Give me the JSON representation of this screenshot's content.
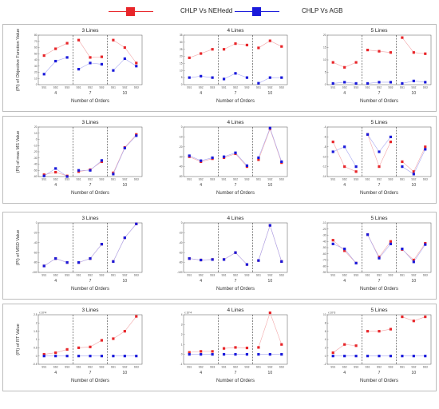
{
  "legend": [
    {
      "name": "CHLP Vs NEHedd",
      "color": "#e8262a"
    },
    {
      "name": "CHLP Vs AGB",
      "color": "#1a1adb"
    }
  ],
  "chart_data": [
    {
      "type": "line",
      "title": "3 Lines",
      "ylabel": "(PI) of Objective Function Value",
      "xlabel": "Number of Orders",
      "groups": [
        "4",
        "7",
        "10"
      ],
      "subcategories": [
        "SS1",
        "SS2",
        "SS3"
      ],
      "ylim": [
        0,
        80
      ],
      "yticks": [
        0,
        10,
        20,
        30,
        40,
        50,
        60,
        70,
        80
      ],
      "series": [
        {
          "name": "CHLP Vs NEHedd",
          "values": [
            47,
            58,
            67,
            72,
            44,
            45,
            72,
            60,
            35
          ]
        },
        {
          "name": "CHLP Vs AGB",
          "values": [
            17,
            38,
            44,
            25,
            35,
            33,
            23,
            42,
            30
          ]
        }
      ]
    },
    {
      "type": "line",
      "title": "4 Lines",
      "ylabel": "",
      "xlabel": "Number of Orders",
      "groups": [
        "4",
        "7",
        "10"
      ],
      "subcategories": [
        "SS1",
        "SS2",
        "SS3"
      ],
      "ylim": [
        0,
        35
      ],
      "yticks": [
        0,
        5,
        10,
        15,
        20,
        25,
        30,
        35
      ],
      "series": [
        {
          "name": "CHLP Vs NEHedd",
          "values": [
            19,
            22,
            25,
            25,
            29,
            28,
            26,
            31,
            27
          ]
        },
        {
          "name": "CHLP Vs AGB",
          "values": [
            5,
            6,
            5,
            4,
            8,
            5,
            1,
            5,
            5
          ]
        }
      ]
    },
    {
      "type": "line",
      "title": "5 Lines",
      "ylabel": "",
      "xlabel": "Number of Orders",
      "groups": [
        "4",
        "7",
        "10"
      ],
      "subcategories": [
        "SS1",
        "SS2",
        "SS3"
      ],
      "ylim": [
        0,
        20
      ],
      "yticks": [
        0,
        5,
        10,
        15,
        20
      ],
      "series": [
        {
          "name": "CHLP Vs NEHedd",
          "values": [
            9,
            7,
            9,
            14,
            13.5,
            13,
            19,
            13,
            12.5
          ]
        },
        {
          "name": "CHLP Vs AGB",
          "values": [
            0.5,
            1,
            0.5,
            0.5,
            1,
            1,
            0.5,
            1.5,
            1
          ]
        }
      ]
    },
    {
      "type": "line",
      "title": "3 Lines",
      "ylabel": "(PI) of max MS Value",
      "xlabel": "Number of Orders",
      "groups": [
        "4",
        "7",
        "10"
      ],
      "subcategories": [
        "SS1",
        "SS2",
        "SS3"
      ],
      "ylim": [
        -60,
        20
      ],
      "yticks": [
        -60,
        -50,
        -40,
        -30,
        -20,
        -10,
        0,
        10,
        20
      ],
      "series": [
        {
          "name": "CHLP Vs NEHedd",
          "values": [
            -57,
            -53,
            -59,
            -52,
            -49,
            -36,
            -54,
            -13,
            8
          ]
        },
        {
          "name": "CHLP Vs AGB",
          "values": [
            -59,
            -47,
            -60,
            -50,
            -50,
            -34,
            -56,
            -14,
            6
          ]
        }
      ]
    },
    {
      "type": "line",
      "title": "4 Lines",
      "ylabel": "",
      "xlabel": "Number of Orders",
      "groups": [
        "4",
        "7",
        "10"
      ],
      "subcategories": [
        "SS1",
        "SS2",
        "SS3"
      ],
      "ylim": [
        -50,
        0
      ],
      "yticks": [
        -50,
        -40,
        -30,
        -20,
        -10,
        0
      ],
      "series": [
        {
          "name": "CHLP Vs NEHedd",
          "values": [
            -30,
            -35,
            -32,
            -31,
            -27,
            -40,
            -33,
            -2,
            -36
          ]
        },
        {
          "name": "CHLP Vs AGB",
          "values": [
            -29,
            -34,
            -31,
            -30,
            -26,
            -39,
            -31,
            -1,
            -35
          ]
        }
      ]
    },
    {
      "type": "line",
      "title": "5 Lines",
      "ylabel": "",
      "xlabel": "Number of Orders",
      "groups": [
        "4",
        "7",
        "10"
      ],
      "subcategories": [
        "SS1",
        "SS2",
        "SS3"
      ],
      "ylim": [
        -14,
        -4
      ],
      "yticks": [
        -14,
        -12,
        -10,
        -8,
        -6,
        -4
      ],
      "series": [
        {
          "name": "CHLP Vs NEHedd",
          "values": [
            -7,
            -12,
            -13,
            -5.5,
            -12,
            -7,
            -11,
            -13,
            -8
          ]
        },
        {
          "name": "CHLP Vs AGB",
          "values": [
            -9,
            -8,
            -12,
            -5.5,
            -9,
            -6,
            -12,
            -13.5,
            -8.5
          ]
        }
      ]
    },
    {
      "type": "line",
      "title": "3 Lines",
      "ylabel": "(PI) of MSD Value",
      "xlabel": "Number of Orders",
      "groups": [
        "4",
        "7",
        "10"
      ],
      "subcategories": [
        "SS1",
        "SS2",
        "SS3"
      ],
      "ylim": [
        -100,
        0
      ],
      "yticks": [
        -100,
        -80,
        -60,
        -40,
        -20,
        0
      ],
      "series": [
        {
          "name": "CHLP Vs NEHedd",
          "values": [
            -87,
            -72,
            -80,
            -80,
            -72,
            -43,
            -78,
            -30,
            -2
          ]
        },
        {
          "name": "CHLP Vs AGB",
          "values": [
            -87,
            -72,
            -80,
            -80,
            -72,
            -43,
            -78,
            -30,
            -2
          ]
        }
      ]
    },
    {
      "type": "line",
      "title": "4 Lines",
      "ylabel": "",
      "xlabel": "Number of Orders",
      "groups": [
        "4",
        "7",
        "10"
      ],
      "subcategories": [
        "SS1",
        "SS2",
        "SS3"
      ],
      "ylim": [
        -100,
        0
      ],
      "yticks": [
        -100,
        -80,
        -60,
        -40,
        -20,
        0
      ],
      "series": [
        {
          "name": "CHLP Vs NEHedd",
          "values": [
            -72,
            -75,
            -74,
            -74,
            -60,
            -84,
            -76,
            -5,
            -78
          ]
        },
        {
          "name": "CHLP Vs AGB",
          "values": [
            -72,
            -75,
            -74,
            -74,
            -60,
            -84,
            -76,
            -5,
            -78
          ]
        }
      ]
    },
    {
      "type": "line",
      "title": "5 Lines",
      "ylabel": "",
      "xlabel": "Number of Orders",
      "groups": [
        "4",
        "7",
        "10"
      ],
      "subcategories": [
        "SS1",
        "SS2",
        "SS3"
      ],
      "ylim": [
        -90,
        -10
      ],
      "yticks": [
        -90,
        -80,
        -70,
        -60,
        -50,
        -40,
        -30,
        -20,
        -10
      ],
      "series": [
        {
          "name": "CHLP Vs NEHedd",
          "values": [
            -38,
            -55,
            -75,
            -29,
            -65,
            -40,
            -53,
            -70,
            -43
          ]
        },
        {
          "name": "CHLP Vs AGB",
          "values": [
            -44,
            -52,
            -75,
            -29,
            -67,
            -44,
            -52,
            -73,
            -45
          ]
        }
      ]
    },
    {
      "type": "line",
      "title": "3 Lines",
      "ylabel": "(PI) of RT Value",
      "xlabel": "Number of Orders",
      "groups": [
        "4",
        "7",
        "10"
      ],
      "subcategories": [
        "SS1",
        "SS2",
        "SS3"
      ],
      "ylim": [
        -0.5,
        2.5
      ],
      "yticks": [
        -0.5,
        0,
        0.5,
        1,
        1.5,
        2,
        2.5
      ],
      "ytick_labels": [
        "-0.5",
        "0",
        "0.5",
        "1",
        "1.5",
        "2",
        "2.5"
      ],
      "yexponent": "x 10^4",
      "series": [
        {
          "name": "CHLP Vs NEHedd",
          "values": [
            0.1,
            0.2,
            0.4,
            0.5,
            0.55,
            0.95,
            1.05,
            1.5,
            2.4
          ]
        },
        {
          "name": "CHLP Vs AGB",
          "values": [
            0,
            0,
            0,
            0,
            0,
            0,
            0,
            0,
            0
          ]
        }
      ]
    },
    {
      "type": "line",
      "title": "4 Lines",
      "ylabel": "",
      "xlabel": "Number of Orders",
      "groups": [
        "4",
        "7",
        "10"
      ],
      "subcategories": [
        "SS1",
        "SS2",
        "SS3"
      ],
      "ylim": [
        -1,
        4
      ],
      "yticks": [
        -1,
        0,
        1,
        2,
        3,
        4
      ],
      "ytick_labels": [
        "-1",
        "0",
        "1",
        "2",
        "3",
        "4"
      ],
      "yexponent": "x 10^4",
      "series": [
        {
          "name": "CHLP Vs NEHedd",
          "values": [
            0.2,
            0.3,
            0.3,
            0.6,
            0.7,
            0.65,
            0.7,
            4.2,
            1.0
          ]
        },
        {
          "name": "CHLP Vs AGB",
          "values": [
            0,
            0,
            0,
            0,
            0,
            0,
            0,
            0,
            0
          ]
        }
      ]
    },
    {
      "type": "line",
      "title": "5 Lines",
      "ylabel": "",
      "xlabel": "Number of Orders",
      "groups": [
        "4",
        "7",
        "10"
      ],
      "subcategories": [
        "SS1",
        "SS2",
        "SS3"
      ],
      "ylim": [
        -2,
        10
      ],
      "yticks": [
        -2,
        0,
        2,
        4,
        6,
        8,
        10
      ],
      "ytick_labels": [
        "-2",
        "0",
        "2",
        "4",
        "6",
        "8",
        "10"
      ],
      "yexponent": "x 10^3",
      "series": [
        {
          "name": "CHLP Vs NEHedd",
          "values": [
            0.8,
            2.8,
            2.5,
            6,
            6,
            6.5,
            9.5,
            8.5,
            9.5
          ]
        },
        {
          "name": "CHLP Vs AGB",
          "values": [
            0,
            0,
            0,
            0,
            0,
            0,
            0,
            0,
            0
          ]
        }
      ]
    }
  ]
}
